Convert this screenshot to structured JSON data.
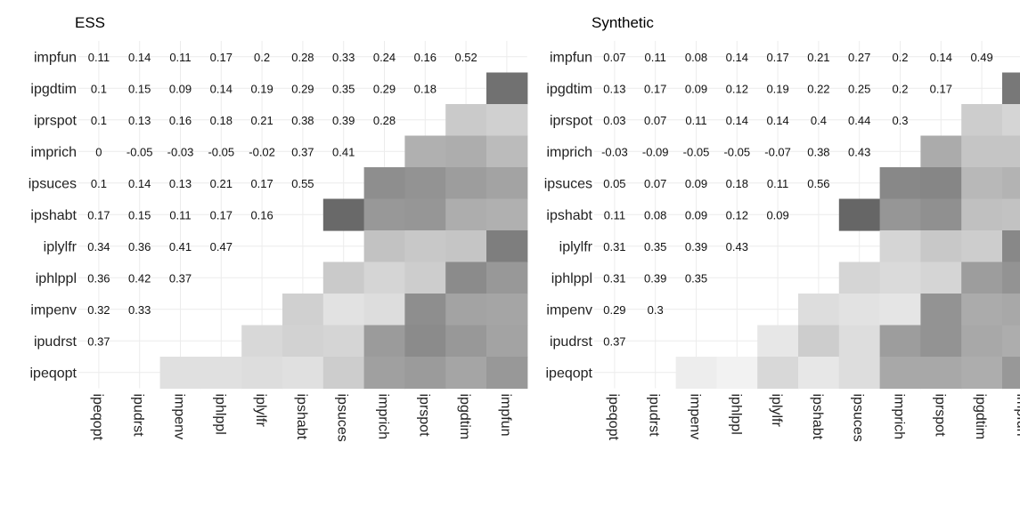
{
  "chart_data": [
    {
      "type": "heatmap",
      "title": "ESS",
      "vars": [
        "ipeqopt",
        "ipudrst",
        "impenv",
        "iphlppl",
        "iplylfr",
        "ipshabt",
        "ipsuces",
        "imprich",
        "iprspot",
        "ipgdtim",
        "impfun"
      ],
      "y_order_top_to_bottom": [
        "impfun",
        "ipgdtim",
        "iprspot",
        "imprich",
        "ipsuces",
        "ipshabt",
        "iplylfr",
        "iphlppl",
        "impenv",
        "ipudrst",
        "ipeqopt"
      ],
      "x_tick_labels": [
        "ipeqopt",
        "ipudrst",
        "impenv",
        "iphlppl",
        "iplylfr",
        "ipshabt",
        "ipsuces",
        "imprich",
        "iprspot",
        "ipgdtim",
        "impfun"
      ],
      "lower_values": [
        [
          "0.11",
          "0.14",
          "0.11",
          "0.17",
          "0.2",
          "0.28",
          "0.33",
          "0.24",
          "0.16",
          "0.52"
        ],
        [
          "0.1",
          "0.15",
          "0.09",
          "0.14",
          "0.19",
          "0.29",
          "0.35",
          "0.29",
          "0.18"
        ],
        [
          "0.1",
          "0.13",
          "0.16",
          "0.18",
          "0.21",
          "0.38",
          "0.39",
          "0.28"
        ],
        [
          "0",
          "-0.05",
          "-0.03",
          "-0.05",
          "-0.02",
          "0.37",
          "0.41"
        ],
        [
          "0.1",
          "0.14",
          "0.13",
          "0.21",
          "0.17",
          "0.55"
        ],
        [
          "0.17",
          "0.15",
          "0.11",
          "0.17",
          "0.16"
        ],
        [
          "0.34",
          "0.36",
          "0.41",
          "0.47"
        ],
        [
          "0.36",
          "0.42",
          "0.37"
        ],
        [
          "0.32",
          "0.33"
        ],
        [
          "0.37"
        ]
      ],
      "upper_shading": [
        [],
        [
          0.52
        ],
        [
          0.18,
          0.16
        ],
        [
          0.28,
          0.29,
          0.24
        ],
        [
          0.41,
          0.39,
          0.35,
          0.33
        ],
        [
          0.55,
          0.37,
          0.38,
          0.29,
          0.28
        ],
        [
          null,
          null,
          0.21,
          0.19,
          0.2,
          0.47
        ],
        [
          null,
          null,
          0.18,
          0.14,
          0.17,
          0.42,
          0.37
        ],
        [
          null,
          null,
          0.16,
          0.09,
          0.11,
          0.41,
          0.33,
          0.32
        ],
        [
          null,
          null,
          0.13,
          0.15,
          0.14,
          0.36,
          0.42,
          0.37,
          0.33
        ],
        [
          null,
          0.1,
          0.1,
          0.11,
          0.1,
          0.17,
          0.34,
          0.36,
          0.32,
          0.37
        ]
      ]
    },
    {
      "type": "heatmap",
      "title": "Synthetic",
      "vars": [
        "ipeqopt",
        "ipudrst",
        "impenv",
        "iphlppl",
        "iplylfr",
        "ipshabt",
        "ipsuces",
        "imprich",
        "iprspot",
        "ipgdtim",
        "impfun"
      ],
      "y_order_top_to_bottom": [
        "impfun",
        "ipgdtim",
        "iprspot",
        "imprich",
        "ipsuces",
        "ipshabt",
        "iplylfr",
        "iphlppl",
        "impenv",
        "ipudrst",
        "ipeqopt"
      ],
      "x_tick_labels": [
        "ipeqopt",
        "ipudrst",
        "impenv",
        "iphlppl",
        "iplylfr",
        "ipshabt",
        "ipsuces",
        "imprich",
        "iprspot",
        "ipgdtim",
        "impfun"
      ],
      "lower_values": [
        [
          "0.07",
          "0.11",
          "0.08",
          "0.14",
          "0.17",
          "0.21",
          "0.27",
          "0.2",
          "0.14",
          "0.49"
        ],
        [
          "0.13",
          "0.17",
          "0.09",
          "0.12",
          "0.19",
          "0.22",
          "0.25",
          "0.2",
          "0.17"
        ],
        [
          "0.03",
          "0.07",
          "0.11",
          "0.14",
          "0.14",
          "0.4",
          "0.44",
          "0.3"
        ],
        [
          "-0.03",
          "-0.09",
          "-0.05",
          "-0.05",
          "-0.07",
          "0.38",
          "0.43"
        ],
        [
          "0.05",
          "0.07",
          "0.09",
          "0.18",
          "0.11",
          "0.56"
        ],
        [
          "0.11",
          "0.08",
          "0.09",
          "0.12",
          "0.09"
        ],
        [
          "0.31",
          "0.35",
          "0.39",
          "0.43"
        ],
        [
          "0.31",
          "0.39",
          "0.35"
        ],
        [
          "0.29",
          "0.3"
        ],
        [
          "0.37"
        ]
      ],
      "upper_shading": [
        [],
        [
          0.49
        ],
        [
          0.17,
          0.14
        ],
        [
          0.3,
          0.2,
          0.2
        ],
        [
          0.43,
          0.44,
          0.25,
          0.27
        ],
        [
          0.56,
          0.38,
          0.4,
          0.22,
          0.21
        ],
        [
          null,
          null,
          0.14,
          0.19,
          0.17,
          0.43
        ],
        [
          null,
          null,
          0.14,
          0.12,
          0.14,
          0.35,
          0.39
        ],
        [
          null,
          null,
          0.11,
          0.09,
          0.08,
          0.39,
          0.3,
          0.31
        ],
        [
          null,
          null,
          0.07,
          0.17,
          0.11,
          0.35,
          0.39,
          0.31,
          0.29
        ],
        [
          null,
          0.05,
          0.03,
          0.13,
          0.07,
          0.11,
          0.31,
          0.31,
          0.29,
          0.37
        ]
      ]
    }
  ]
}
